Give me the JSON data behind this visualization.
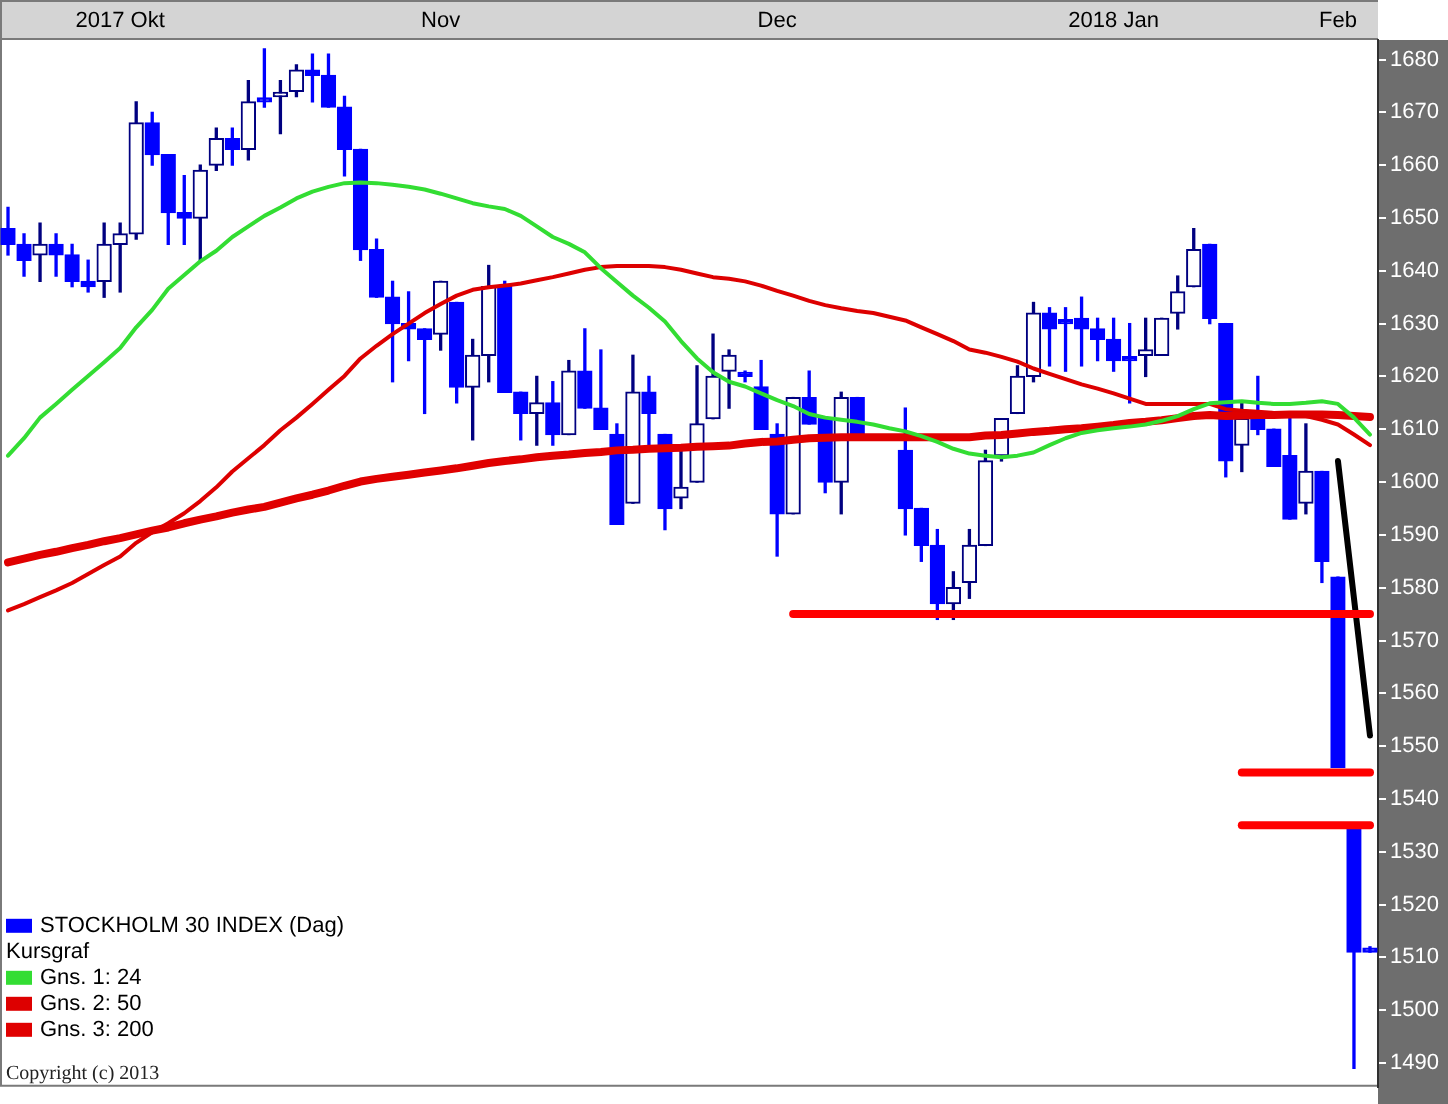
{
  "chart_data": {
    "type": "candlestick",
    "categories": [
      null,
      null,
      null,
      null,
      null,
      null,
      null,
      "2017 Okt",
      null,
      null,
      null,
      null,
      null,
      null,
      null,
      null,
      null,
      null,
      null,
      null,
      null,
      null,
      null,
      null,
      null,
      null,
      null,
      "Nov",
      null,
      null,
      null,
      null,
      null,
      null,
      null,
      null,
      null,
      null,
      null,
      null,
      null,
      null,
      null,
      null,
      null,
      null,
      null,
      null,
      "Dec",
      null,
      null,
      null,
      null,
      null,
      null,
      null,
      null,
      null,
      null,
      null,
      null,
      null,
      null,
      null,
      null,
      null,
      null,
      null,
      null,
      "2018 Jan",
      null,
      null,
      null,
      null,
      null,
      null,
      null,
      null,
      null,
      null,
      null,
      null,
      null,
      "Feb",
      null,
      null
    ],
    "series": [
      {
        "name": "STOCKHOLM 30 INDEX (Dag)",
        "color": "#0000ff",
        "colors": [
          "#0000ff",
          "#0000ff",
          "#000080",
          "#0000ff",
          "#0000ff",
          "#0000ff",
          "#000080",
          "#000080",
          "#000080",
          "#0000ff",
          "#0000ff",
          "#0000ff",
          "#000080",
          "#000080",
          "#0000ff",
          "#000080",
          "#0000ff",
          "#000080",
          "#000080",
          "#0000ff",
          "#0000ff",
          "#0000ff",
          "#0000ff",
          "#0000ff",
          "#0000ff",
          "#0000ff",
          "#0000ff",
          "#000080",
          "#0000ff",
          "#000080",
          "#000080",
          "#0000ff",
          "#0000ff",
          "#000080",
          "#0000ff",
          "#000080",
          "#0000ff",
          "#0000ff",
          "#0000ff",
          "#000080",
          "#0000ff",
          "#0000ff",
          "#000080",
          "#000080",
          "#000080",
          "#000080",
          "#0000ff",
          "#0000ff",
          "#0000ff",
          "#000080",
          "#0000ff",
          "#0000ff",
          "#000080",
          "#0000ff",
          null,
          null,
          "#0000ff",
          "#0000ff",
          "#0000ff",
          "#000080",
          "#000080",
          "#000080",
          "#000080",
          "#000080",
          "#000080",
          "#0000ff",
          "#0000ff",
          "#0000ff",
          "#0000ff",
          "#0000ff",
          "#0000ff",
          "#000080",
          "#000080",
          "#000080",
          "#000080",
          "#0000ff",
          "#0000ff",
          "#000080",
          "#0000ff",
          "#0000ff",
          "#0000ff",
          "#000080",
          "#0000ff",
          "#0000ff",
          "#0000ff",
          "#0000ff"
        ],
        "ohlc": [
          [
            1648,
            1652,
            1643,
            1645
          ],
          [
            1645,
            1647,
            1639,
            1642
          ],
          [
            1643,
            1649,
            1638,
            1645
          ],
          [
            1645,
            1647,
            1639,
            1643
          ],
          [
            1643,
            1645,
            1637,
            1638
          ],
          [
            1638,
            1642,
            1636,
            1637
          ],
          [
            1638,
            1649,
            1635,
            1645
          ],
          [
            1645,
            1649,
            1636,
            1647
          ],
          [
            1647,
            1672,
            1646,
            1668
          ],
          [
            1668,
            1670,
            1660,
            1662
          ],
          [
            1662,
            1662,
            1645,
            1651
          ],
          [
            1651,
            1658,
            1645,
            1650
          ],
          [
            1650,
            1660,
            1642,
            1659
          ],
          [
            1660,
            1667,
            1659,
            1665
          ],
          [
            1665,
            1667,
            1660,
            1663
          ],
          [
            1663,
            1676,
            1661,
            1672
          ],
          [
            1672.5,
            1682,
            1671,
            1672
          ],
          [
            1673,
            1676,
            1666,
            1673.5
          ],
          [
            1674,
            1679,
            1673,
            1678
          ],
          [
            1678,
            1681,
            1672,
            1677
          ],
          [
            1677,
            1681,
            1671,
            1671
          ],
          [
            1671,
            1673,
            1658,
            1663
          ],
          [
            1663,
            1663,
            1642,
            1644
          ],
          [
            1644,
            1646,
            1635,
            1635
          ],
          [
            1635,
            1638,
            1619,
            1630
          ],
          [
            1630,
            1636,
            1623,
            1629
          ],
          [
            1629,
            1629,
            1613,
            1627
          ],
          [
            1628,
            1638,
            1625,
            1638
          ],
          [
            1634,
            1634,
            1615,
            1618
          ],
          [
            1618,
            1627,
            1608,
            1624
          ],
          [
            1624,
            1641,
            1619,
            1637
          ],
          [
            1637,
            1638,
            1617,
            1617
          ],
          [
            1617,
            1617,
            1608,
            1613
          ],
          [
            1613,
            1620,
            1607,
            1615
          ],
          [
            1615,
            1619,
            1607,
            1609
          ],
          [
            1609,
            1623,
            1609,
            1621
          ],
          [
            1621,
            1629,
            1614,
            1614
          ],
          [
            1614,
            1625,
            1610,
            1610
          ],
          [
            1609,
            1611,
            1592,
            1592
          ],
          [
            1596,
            1624,
            1596,
            1617
          ],
          [
            1617,
            1620,
            1607,
            1613
          ],
          [
            1609,
            1609,
            1591,
            1595
          ],
          [
            1597,
            1606,
            1595,
            1599
          ],
          [
            1600,
            1622,
            1600,
            1611
          ],
          [
            1612,
            1628,
            1612,
            1620
          ],
          [
            1621,
            1625,
            1614,
            1624
          ],
          [
            1620.5,
            1621,
            1619,
            1620
          ],
          [
            1618,
            1623,
            1610,
            1610
          ],
          [
            1609,
            1611,
            1586,
            1594
          ],
          [
            1594,
            1616,
            1594,
            1616
          ],
          [
            1616,
            1621,
            1611,
            1611
          ],
          [
            1612,
            1612,
            1598,
            1600
          ],
          [
            1600,
            1617,
            1594,
            1616
          ],
          [
            1616,
            1616,
            1609,
            1609
          ],
          null,
          null,
          [
            1606,
            1614,
            1590,
            1595
          ],
          [
            1595,
            1595,
            1585,
            1588
          ],
          [
            1588,
            1591,
            1574,
            1577
          ],
          [
            1577,
            1583,
            1574,
            1580
          ],
          [
            1581,
            1591,
            1578,
            1588
          ],
          [
            1588,
            1606,
            1588,
            1604
          ],
          [
            1605,
            1612,
            1604,
            1612
          ],
          [
            1613,
            1622,
            1613,
            1620
          ],
          [
            1620,
            1634,
            1619,
            1632
          ],
          [
            1632,
            1633,
            1622,
            1629
          ],
          [
            1630.5,
            1633,
            1621,
            1630
          ],
          [
            1631,
            1635,
            1622,
            1629
          ],
          [
            1629,
            1631,
            1623,
            1627
          ],
          [
            1627,
            1631,
            1621,
            1623
          ],
          [
            1623.5,
            1630,
            1615,
            1623
          ],
          [
            1624,
            1631,
            1620,
            1625
          ],
          [
            1624,
            1631,
            1624,
            1631
          ],
          [
            1632,
            1639,
            1629,
            1636
          ],
          [
            1637,
            1648,
            1637,
            1644
          ],
          [
            1645,
            1645,
            1630,
            1631
          ],
          [
            1630,
            1630,
            1601,
            1604
          ],
          [
            1607,
            1615,
            1602,
            1612
          ],
          [
            1612,
            1620,
            1609,
            1610
          ],
          [
            1610,
            1610,
            1603,
            1603
          ],
          [
            1605,
            1612,
            1593,
            1593
          ],
          [
            1596,
            1611,
            1594,
            1602
          ],
          [
            1602,
            1602,
            1581,
            1585
          ],
          [
            1582,
            1582,
            1546,
            1546
          ],
          [
            1535,
            1535,
            1489,
            1511
          ],
          [
            1511.5,
            1512,
            1511,
            1511
          ]
        ]
      },
      {
        "name": "Gns. 1: 24",
        "type": "line",
        "color": "#33dd33",
        "values": [
          1605,
          1608.3,
          1612.2,
          1614.8,
          1617.5,
          1620.1,
          1622.7,
          1625.4,
          1629.3,
          1632.6,
          1636.6,
          1639.2,
          1641.8,
          1643.8,
          1646.4,
          1648.4,
          1650.4,
          1652,
          1653.7,
          1655,
          1655.9,
          1656.6,
          1656.7,
          1656.6,
          1656.3,
          1655.9,
          1655.4,
          1654.6,
          1653.7,
          1652.8,
          1652.2,
          1651.7,
          1650.4,
          1648.4,
          1646.4,
          1645.1,
          1643.5,
          1640.5,
          1637.9,
          1635.3,
          1633,
          1630.4,
          1626.7,
          1623.4,
          1620.8,
          1619,
          1618.1,
          1616.8,
          1615.5,
          1614.4,
          1612.9,
          1612.2,
          1611.8,
          1611.4,
          1610.9,
          1610.2,
          1609.6,
          1608.7,
          1607.6,
          1606.3,
          1605.4,
          1605,
          1604.7,
          1605,
          1605.6,
          1607,
          1608.3,
          1609.3,
          1609.8,
          1610.2,
          1610.5,
          1610.9,
          1611.6,
          1612.5,
          1613.8,
          1614.9,
          1615.1,
          1615.3,
          1615,
          1614.8,
          1614.8,
          1615,
          1615.3,
          1614.8,
          1612.2,
          1609
        ]
      },
      {
        "name": "Gns. 2: 50",
        "type": "line",
        "color": "#dd0000",
        "values": [
          1575.7,
          1576.9,
          1578.2,
          1579.5,
          1580.9,
          1582.6,
          1584.3,
          1585.9,
          1588.5,
          1590.5,
          1592.2,
          1594.1,
          1596.4,
          1599,
          1602,
          1604.5,
          1607,
          1609.8,
          1612.2,
          1614.8,
          1617.5,
          1620.1,
          1623.4,
          1625.8,
          1628,
          1630,
          1632,
          1633.7,
          1635.3,
          1636.4,
          1636.9,
          1637.2,
          1637.6,
          1638.2,
          1638.8,
          1639.5,
          1640.2,
          1640.7,
          1640.9,
          1640.9,
          1640.9,
          1640.7,
          1640.2,
          1639.5,
          1638.8,
          1638.5,
          1638,
          1637.2,
          1636.2,
          1635.3,
          1634.3,
          1633.5,
          1632.9,
          1632.4,
          1632,
          1631.3,
          1630.6,
          1629.3,
          1628,
          1626.7,
          1625.1,
          1624.5,
          1623.7,
          1622.8,
          1621.5,
          1620.5,
          1619.5,
          1618.5,
          1617.7,
          1616.8,
          1615.8,
          1614.8,
          1614.8,
          1614.8,
          1614.8,
          1614.8,
          1613.8,
          1613.5,
          1613.3,
          1613.1,
          1612.9,
          1612.5,
          1611.8,
          1610.9,
          1609,
          1607
        ]
      },
      {
        "name": "Gns. 3: 200",
        "type": "line",
        "color": "#e00000",
        "values": [
          1584.8,
          1585.5,
          1586.2,
          1586.8,
          1587.5,
          1588.1,
          1588.8,
          1589.4,
          1590.1,
          1590.8,
          1591.4,
          1592.2,
          1592.9,
          1593.5,
          1594.2,
          1594.8,
          1595.3,
          1596.1,
          1596.9,
          1597.6,
          1598.4,
          1599.3,
          1600.1,
          1600.6,
          1601,
          1601.4,
          1601.8,
          1602.2,
          1602.6,
          1603.1,
          1603.6,
          1604,
          1604.3,
          1604.7,
          1605,
          1605.2,
          1605.5,
          1605.7,
          1606,
          1606.1,
          1606.3,
          1606.4,
          1606.5,
          1606.7,
          1606.8,
          1606.9,
          1607.3,
          1607.6,
          1607.7,
          1608,
          1608.3,
          1608.4,
          1608.5,
          1608.5,
          1608.5,
          1608.5,
          1608.5,
          1608.5,
          1608.5,
          1608.5,
          1608.5,
          1608.8,
          1608.9,
          1609.2,
          1609.5,
          1609.7,
          1610,
          1610.2,
          1610.5,
          1610.8,
          1611.2,
          1611.4,
          1611.7,
          1612.1,
          1612.5,
          1612.7,
          1612.5,
          1612.6,
          1612.7,
          1612.7,
          1612.8,
          1612.8,
          1612.8,
          1612.7,
          1612.5,
          1612.3
        ]
      },
      {
        "type": "line",
        "color": "#ff0000",
        "values": [
          null,
          null,
          null,
          null,
          null,
          null,
          null,
          null,
          null,
          null,
          null,
          null,
          null,
          null,
          null,
          null,
          null,
          null,
          null,
          null,
          null,
          null,
          null,
          null,
          null,
          null,
          null,
          null,
          null,
          null,
          null,
          null,
          null,
          null,
          null,
          null,
          null,
          null,
          null,
          null,
          null,
          null,
          null,
          null,
          null,
          null,
          null,
          null,
          null,
          1575,
          null,
          null,
          null,
          null,
          null,
          null,
          null,
          null,
          null,
          null,
          null,
          null,
          null,
          null,
          null,
          null,
          null,
          null,
          null,
          null,
          null,
          null,
          null,
          null,
          null,
          null,
          null,
          null,
          null,
          null,
          null,
          null,
          null,
          null,
          null,
          1575
        ]
      },
      {
        "type": "line",
        "color": "#ff0000",
        "values": [
          null,
          null,
          null,
          null,
          null,
          null,
          null,
          null,
          null,
          null,
          null,
          null,
          null,
          null,
          null,
          null,
          null,
          null,
          null,
          null,
          null,
          null,
          null,
          null,
          null,
          null,
          null,
          null,
          null,
          null,
          null,
          null,
          null,
          null,
          null,
          null,
          null,
          null,
          null,
          null,
          null,
          null,
          null,
          null,
          null,
          null,
          null,
          null,
          null,
          null,
          null,
          null,
          null,
          null,
          null,
          null,
          null,
          null,
          null,
          null,
          null,
          null,
          null,
          null,
          null,
          null,
          null,
          null,
          null,
          null,
          null,
          null,
          null,
          null,
          null,
          null,
          null,
          1545,
          null,
          null,
          null,
          null,
          null,
          null,
          null,
          1545
        ]
      },
      {
        "type": "line",
        "color": "#ff0000",
        "values": [
          null,
          null,
          null,
          null,
          null,
          null,
          null,
          null,
          null,
          null,
          null,
          null,
          null,
          null,
          null,
          null,
          null,
          null,
          null,
          null,
          null,
          null,
          null,
          null,
          null,
          null,
          null,
          null,
          null,
          null,
          null,
          null,
          null,
          null,
          null,
          null,
          null,
          null,
          null,
          null,
          null,
          null,
          null,
          null,
          null,
          null,
          null,
          null,
          null,
          null,
          null,
          null,
          null,
          null,
          null,
          null,
          null,
          null,
          null,
          null,
          null,
          null,
          null,
          null,
          null,
          null,
          null,
          null,
          null,
          null,
          null,
          null,
          null,
          null,
          null,
          null,
          null,
          1535,
          null,
          null,
          null,
          null,
          null,
          null,
          null,
          1535
        ]
      },
      {
        "type": "line",
        "color": "#000000",
        "values": [
          null,
          null,
          null,
          null,
          null,
          null,
          null,
          null,
          null,
          null,
          null,
          null,
          null,
          null,
          null,
          null,
          null,
          null,
          null,
          null,
          null,
          null,
          null,
          null,
          null,
          null,
          null,
          null,
          null,
          null,
          null,
          null,
          null,
          null,
          null,
          null,
          null,
          null,
          null,
          null,
          null,
          null,
          null,
          null,
          null,
          null,
          null,
          null,
          null,
          null,
          null,
          null,
          null,
          null,
          null,
          null,
          null,
          null,
          null,
          null,
          null,
          null,
          null,
          null,
          null,
          null,
          null,
          null,
          null,
          null,
          null,
          null,
          null,
          null,
          null,
          null,
          null,
          null,
          null,
          null,
          null,
          null,
          null,
          1604,
          null,
          1552
        ]
      }
    ],
    "ylim": [
      1485.5,
      1683.7
    ],
    "yticks": [
      1490,
      1500,
      1510,
      1520,
      1530,
      1540,
      1550,
      1560,
      1570,
      1580,
      1590,
      1600,
      1610,
      1620,
      1630,
      1640,
      1650,
      1660,
      1670,
      1680
    ],
    "legend": "bottom left",
    "legend_title": "Kursgraf",
    "annotations": [
      "Copyright (c) 2013"
    ]
  }
}
